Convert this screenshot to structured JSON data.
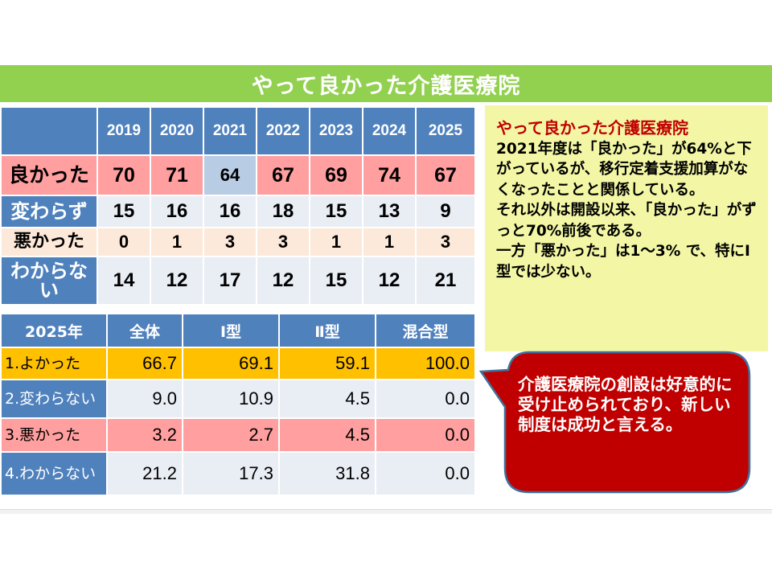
{
  "title": "やって良かった介護医療院",
  "yearly_table": {
    "corner": "",
    "years": [
      "2019",
      "2020",
      "2021",
      "2022",
      "2023",
      "2024",
      "2025"
    ],
    "rows": [
      {
        "label": "良かった",
        "values": [
          "70",
          "71",
          "64",
          "67",
          "69",
          "74",
          "67"
        ]
      },
      {
        "label": "変わらず",
        "values": [
          "15",
          "16",
          "16",
          "18",
          "15",
          "13",
          "9"
        ]
      },
      {
        "label": "悪かった",
        "values": [
          "0",
          "1",
          "3",
          "3",
          "1",
          "1",
          "3"
        ]
      },
      {
        "label": "わからない",
        "values": [
          "14",
          "12",
          "17",
          "12",
          "15",
          "12",
          "21"
        ]
      }
    ],
    "highlight_color": "#ff9f9f",
    "dip_highlight_color": "#b8cce4"
  },
  "type_table": {
    "headers": [
      "2025年",
      "全体",
      "Ⅰ型",
      "Ⅱ型",
      "混合型"
    ],
    "rows": [
      {
        "label": "1.よかった",
        "values": [
          "66.7",
          "69.1",
          "59.1",
          "100.0"
        ]
      },
      {
        "label": "2.変わらない",
        "values": [
          "9.0",
          "10.9",
          "4.5",
          "0.0"
        ]
      },
      {
        "label": "3.悪かった",
        "values": [
          "3.2",
          "2.7",
          "4.5",
          "0.0"
        ]
      },
      {
        "label": "4.わからない",
        "values": [
          "21.2",
          "17.3",
          "31.8",
          "0.0"
        ]
      }
    ]
  },
  "note": {
    "title": "やって良かった介護医療院",
    "paragraphs": [
      "2021年度は「良かった」が64%と下がっているが、移行定着支援加算がなくなったことと関係している。",
      "それ以外は開設以来、「良かった」がずっと70%前後である。",
      "一方「悪かった」は1～3% で、特にⅠ型では少ない。"
    ]
  },
  "callout": {
    "text": "介護医療院の創設は好意的に受け止められており、新しい制度は成功と言える。",
    "color": "#c00000"
  },
  "colors": {
    "title_band": "#92d050",
    "header_blue": "#4f81bd",
    "note_bg": "#f3f7a5",
    "good_row_2025": "#ffc000"
  }
}
